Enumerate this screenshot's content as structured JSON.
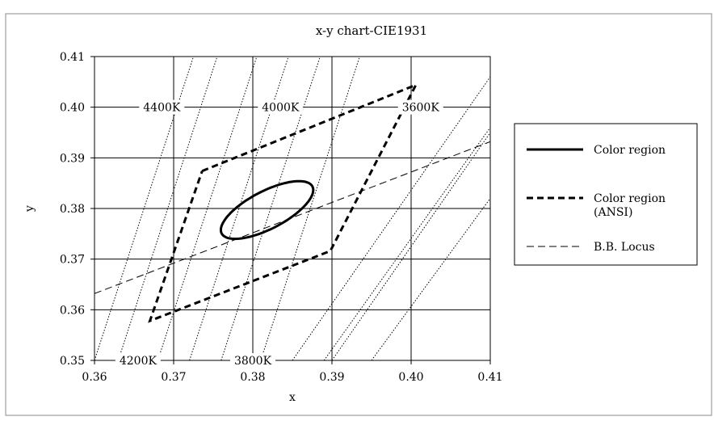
{
  "chart_data": {
    "type": "line",
    "title": "x-y chart-CIE1931",
    "xlabel": "x",
    "ylabel": "y",
    "xlim": [
      0.36,
      0.41
    ],
    "ylim": [
      0.35,
      0.41
    ],
    "xticks": [
      "0.36",
      "0.37",
      "0.38",
      "0.39",
      "0.40",
      "0.41"
    ],
    "yticks": [
      "0.35",
      "0.36",
      "0.37",
      "0.38",
      "0.39",
      "0.40",
      "0.41"
    ],
    "grid": true,
    "legend_position": "right",
    "series": [
      {
        "name": "Color region",
        "style": "solid-thick",
        "kind": "ellipse",
        "center": [
          0.3818,
          0.3797
        ],
        "semi_axis_major": 0.0075,
        "semi_axis_minor": 0.0032,
        "angle_deg": 44
      },
      {
        "name": "Color region (ANSI)",
        "style": "dashed-thick",
        "points": [
          [
            0.3736,
            0.3874
          ],
          [
            0.4006,
            0.4044
          ],
          [
            0.3898,
            0.3716
          ],
          [
            0.367,
            0.3578
          ],
          [
            0.3736,
            0.3874
          ]
        ]
      },
      {
        "name": "B.B. Locus",
        "style": "dashed-thin",
        "points": [
          [
            0.36,
            0.3632
          ],
          [
            0.41,
            0.3932
          ]
        ]
      }
    ],
    "isotherms": [
      {
        "label": "4400K",
        "label_at": [
          0.3685,
          0.4
        ],
        "p1": [
          0.363,
          0.35
        ],
        "p2": [
          0.3755,
          0.41
        ]
      },
      {
        "label": "4000K",
        "label_at": [
          0.3835,
          0.4
        ],
        "p1": [
          0.372,
          0.35
        ],
        "p2": [
          0.3845,
          0.41
        ]
      },
      {
        "label": "3600K",
        "label_at": [
          0.4012,
          0.4
        ],
        "p1": [
          0.385,
          0.35
        ],
        "p2": [
          0.41,
          0.406
        ]
      },
      {
        "label": "4200K",
        "label_at": [
          0.3655,
          0.35
        ],
        "p1": [
          0.368,
          0.35
        ],
        "p2": [
          0.3805,
          0.41
        ]
      },
      {
        "label": "3800K",
        "label_at": [
          0.38,
          0.35
        ],
        "p1": [
          0.376,
          0.35
        ],
        "p2": [
          0.3885,
          0.41
        ]
      }
    ],
    "extra_dotted_lines": [
      {
        "p1": [
          0.36,
          0.35
        ],
        "p2": [
          0.3725,
          0.41
        ]
      },
      {
        "p1": [
          0.381,
          0.35
        ],
        "p2": [
          0.3935,
          0.41
        ]
      },
      {
        "p1": [
          0.39,
          0.35
        ],
        "p2": [
          0.41,
          0.395
        ]
      },
      {
        "p1": [
          0.395,
          0.35
        ],
        "p2": [
          0.41,
          0.382
        ]
      },
      {
        "p1": [
          0.389,
          0.35
        ],
        "p2": [
          0.41,
          0.396
        ]
      }
    ],
    "colors": {
      "line": "#000000",
      "grid": "#000000",
      "background": "#ffffff",
      "frame": "#8a8a8a"
    }
  }
}
